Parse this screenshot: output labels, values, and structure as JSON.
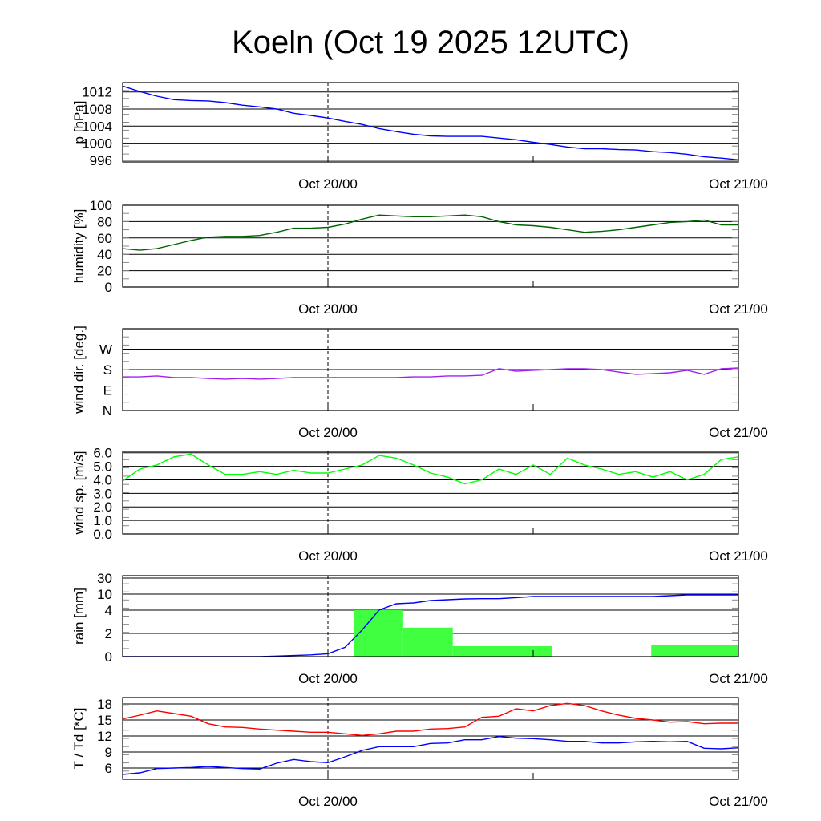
{
  "title": "Koeln (Oct 19 2025 12UTC)",
  "x_axis": {
    "start_hour_label": "Oct 19/12",
    "hours_total": 36,
    "labels": [
      {
        "hour": 12,
        "text": "Oct 20/00"
      },
      {
        "hour": 36,
        "text": "Oct 21/00"
      }
    ],
    "minor_tick_hours": [
      24
    ],
    "dashed_hour": 12
  },
  "chart_data": [
    {
      "id": "pressure",
      "type": "line",
      "ylabel": "p [hPa]",
      "ylim": [
        995.6,
        1014.2
      ],
      "yticks": [
        996,
        1000,
        1004,
        1008,
        1012
      ],
      "ytick_labels": [
        "996",
        "1000",
        "1004",
        "1008",
        "1012"
      ],
      "series": [
        {
          "name": "pressure",
          "color": "#0000ff",
          "values": [
            1013.4,
            1012.1,
            1011,
            1010.2,
            1010,
            1009.9,
            1009.5,
            1008.9,
            1008.5,
            1008,
            1007,
            1006.5,
            1005.9,
            1005.1,
            1004.4,
            1003.4,
            1002.7,
            1002.1,
            1001.7,
            1001.6,
            1001.6,
            1001.6,
            1001.2,
            1000.8,
            1000.2,
            999.7,
            999.1,
            998.7,
            998.7,
            998.5,
            998.4,
            998,
            997.8,
            997.4,
            996.8,
            996.5,
            996.1
          ]
        }
      ]
    },
    {
      "id": "humidity",
      "type": "line",
      "ylabel": "humidity [%]",
      "ylim": [
        0,
        100
      ],
      "yticks": [
        0,
        20,
        40,
        60,
        80,
        100
      ],
      "ytick_labels": [
        "0",
        "20",
        "40",
        "60",
        "80",
        "100"
      ],
      "series": [
        {
          "name": "humidity",
          "color": "#006400",
          "values": [
            47,
            45,
            47,
            52,
            57,
            61,
            62,
            62,
            63,
            67,
            72,
            72,
            73,
            77,
            83,
            88,
            87,
            86,
            86,
            87,
            88,
            86,
            80,
            76,
            75,
            73,
            70,
            67,
            68,
            70,
            73,
            76,
            79,
            80,
            82,
            76,
            76
          ]
        }
      ]
    },
    {
      "id": "wind_direction",
      "type": "line",
      "ylabel": "wind dir. [deg.]",
      "ylim": [
        0,
        360
      ],
      "yticks": [
        0,
        90,
        180,
        270
      ],
      "ytick_labels": [
        "N",
        "E",
        "S",
        "W"
      ],
      "series": [
        {
          "name": "wind direction",
          "color": "#a020f0",
          "values": [
            148,
            148,
            152,
            145,
            145,
            141,
            138,
            141,
            138,
            141,
            145,
            145,
            145,
            145,
            145,
            145,
            145,
            148,
            148,
            152,
            152,
            155,
            184,
            173,
            177,
            180,
            184,
            184,
            180,
            169,
            159,
            162,
            166,
            177,
            159,
            184,
            187
          ]
        }
      ]
    },
    {
      "id": "wind_speed",
      "type": "line",
      "ylabel": "wind sp. [m/s]",
      "ylim": [
        0,
        6.1
      ],
      "yticks": [
        0,
        1,
        2,
        3,
        4,
        5,
        6
      ],
      "ytick_labels": [
        "0.0",
        "1.0",
        "2.0",
        "3.0",
        "4.0",
        "5.0",
        "6.0"
      ],
      "series": [
        {
          "name": "wind speed",
          "color": "#00ff00",
          "values": [
            3.9,
            4.8,
            5.1,
            5.7,
            5.9,
            5.1,
            4.4,
            4.4,
            4.6,
            4.4,
            4.7,
            4.5,
            4.5,
            4.8,
            5.1,
            5.8,
            5.6,
            5.1,
            4.5,
            4.2,
            3.7,
            4.0,
            4.8,
            4.4,
            5.1,
            4.4,
            5.6,
            5.1,
            4.8,
            4.4,
            4.6,
            4.2,
            4.6,
            4.0,
            4.4,
            5.5,
            5.7
          ]
        }
      ]
    },
    {
      "id": "rain",
      "type": "bar+line",
      "ylabel": "rain [mm]",
      "ylim": [
        0,
        30
      ],
      "yticks": [
        0,
        2,
        4,
        10,
        30
      ],
      "ytick_labels": [
        "0",
        "2",
        "4",
        "10",
        "30"
      ],
      "bars": {
        "name": "rain per interval",
        "color": "#40ff40",
        "intervals": [
          {
            "from": 13.5,
            "to": 16.4,
            "value": 4.0
          },
          {
            "from": 16.4,
            "to": 19.3,
            "value": 2.5
          },
          {
            "from": 19.3,
            "to": 25.1,
            "value": 0.9
          },
          {
            "from": 30.9,
            "to": 36,
            "value": 1.0
          }
        ]
      },
      "series": [
        {
          "name": "accumulated rain",
          "color": "#0000ff",
          "values": [
            0,
            0,
            0,
            0,
            0,
            0,
            0,
            0,
            0,
            0.05,
            0.1,
            0.15,
            0.25,
            0.8,
            2.3,
            4.1,
            6.4,
            6.7,
            7.6,
            7.9,
            8.2,
            8.3,
            8.3,
            8.7,
            9.1,
            9.1,
            9.1,
            9.1,
            9.1,
            9.1,
            9.1,
            9.1,
            9.4,
            9.7,
            9.7,
            9.7,
            9.7
          ]
        }
      ]
    },
    {
      "id": "temperature",
      "type": "line",
      "ylabel": "T / Td [*C]",
      "ylim": [
        3.9,
        19.2
      ],
      "yticks": [
        6,
        9,
        12,
        15,
        18
      ],
      "ytick_labels": [
        "6",
        "9",
        "12",
        "15",
        "18"
      ],
      "series": [
        {
          "name": "T",
          "color": "#ff0000",
          "values": [
            15.2,
            15.9,
            16.7,
            16.2,
            15.7,
            14.3,
            13.7,
            13.6,
            13.3,
            13.1,
            12.9,
            12.7,
            12.7,
            12.4,
            12.1,
            12.4,
            12.9,
            12.9,
            13.3,
            13.4,
            13.7,
            15.5,
            15.7,
            17.1,
            16.7,
            17.7,
            18.1,
            17.7,
            16.7,
            15.9,
            15.3,
            15.0,
            14.6,
            14.7,
            14.3,
            14.4,
            14.4
          ]
        },
        {
          "name": "Td",
          "color": "#0000ff",
          "values": [
            4.8,
            5.1,
            5.9,
            6.0,
            6.1,
            6.3,
            6.1,
            5.9,
            5.8,
            6.9,
            7.6,
            7.2,
            7.0,
            8.1,
            9.3,
            10,
            10,
            10,
            10.6,
            10.7,
            11.3,
            11.3,
            11.9,
            11.6,
            11.5,
            11.3,
            11.0,
            11.0,
            10.7,
            10.7,
            10.9,
            11.0,
            10.9,
            11.0,
            9.7,
            9.6,
            9.8
          ]
        }
      ]
    }
  ]
}
